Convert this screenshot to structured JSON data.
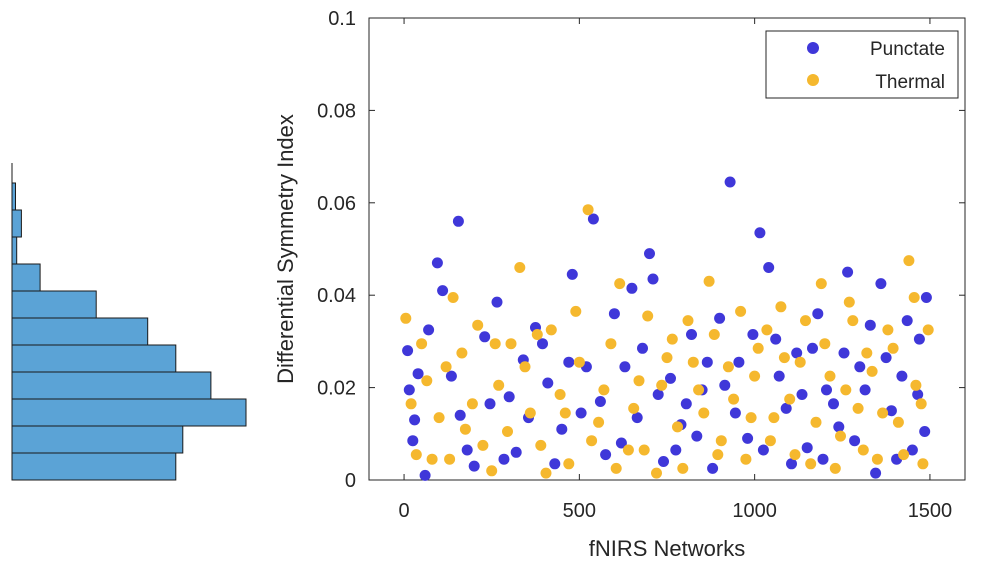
{
  "chart_data": [
    {
      "type": "scatter",
      "xlabel": "fNIRS Networks",
      "ylabel": "Differential Symmetry Index",
      "xlim": [
        -100,
        1600
      ],
      "ylim": [
        0,
        0.1
      ],
      "x_ticks": [
        0,
        500,
        1000,
        1500
      ],
      "x_tick_labels": [
        "0",
        "500",
        "1000",
        "1500"
      ],
      "y_ticks": [
        0,
        0.02,
        0.04,
        0.06,
        0.08,
        0.1
      ],
      "y_tick_labels": [
        "0",
        "0.02",
        "0.04",
        "0.06",
        "0.08",
        "0.1"
      ],
      "grid": false,
      "legend_position": "top-right",
      "series": [
        {
          "name": "Punctate",
          "color": "#3f37d9",
          "points": [
            [
              10,
              0.028
            ],
            [
              40,
              0.023
            ],
            [
              15,
              0.0195
            ],
            [
              30,
              0.013
            ],
            [
              60,
              0.001
            ],
            [
              95,
              0.047
            ],
            [
              110,
              0.041
            ],
            [
              155,
              0.056
            ],
            [
              160,
              0.014
            ],
            [
              200,
              0.003
            ],
            [
              230,
              0.031
            ],
            [
              265,
              0.0385
            ],
            [
              300,
              0.018
            ],
            [
              320,
              0.006
            ],
            [
              340,
              0.026
            ],
            [
              375,
              0.033
            ],
            [
              410,
              0.021
            ],
            [
              450,
              0.011
            ],
            [
              480,
              0.0445
            ],
            [
              520,
              0.0245
            ],
            [
              540,
              0.0565
            ],
            [
              560,
              0.017
            ],
            [
              600,
              0.036
            ],
            [
              620,
              0.008
            ],
            [
              650,
              0.0415
            ],
            [
              680,
              0.0285
            ],
            [
              700,
              0.049
            ],
            [
              710,
              0.0435
            ],
            [
              740,
              0.004
            ],
            [
              760,
              0.022
            ],
            [
              790,
              0.012
            ],
            [
              820,
              0.0315
            ],
            [
              850,
              0.0195
            ],
            [
              880,
              0.0025
            ],
            [
              900,
              0.035
            ],
            [
              930,
              0.0645
            ],
            [
              955,
              0.0255
            ],
            [
              980,
              0.009
            ],
            [
              1015,
              0.0535
            ],
            [
              1040,
              0.046
            ],
            [
              1060,
              0.0305
            ],
            [
              1090,
              0.0155
            ],
            [
              1120,
              0.0275
            ],
            [
              1150,
              0.007
            ],
            [
              1180,
              0.036
            ],
            [
              1205,
              0.0195
            ],
            [
              1240,
              0.0115
            ],
            [
              1265,
              0.045
            ],
            [
              1300,
              0.0245
            ],
            [
              1330,
              0.0335
            ],
            [
              1360,
              0.0425
            ],
            [
              1390,
              0.015
            ],
            [
              1420,
              0.0225
            ],
            [
              1450,
              0.0065
            ],
            [
              1470,
              0.0305
            ],
            [
              1490,
              0.0395
            ],
            [
              25,
              0.0085
            ],
            [
              70,
              0.0325
            ],
            [
              135,
              0.0225
            ],
            [
              180,
              0.0065
            ],
            [
              245,
              0.0165
            ],
            [
              285,
              0.0045
            ],
            [
              355,
              0.0135
            ],
            [
              395,
              0.0295
            ],
            [
              430,
              0.0035
            ],
            [
              470,
              0.0255
            ],
            [
              505,
              0.0145
            ],
            [
              575,
              0.0055
            ],
            [
              630,
              0.0245
            ],
            [
              665,
              0.0135
            ],
            [
              725,
              0.0185
            ],
            [
              775,
              0.0065
            ],
            [
              805,
              0.0165
            ],
            [
              835,
              0.0095
            ],
            [
              865,
              0.0255
            ],
            [
              915,
              0.0205
            ],
            [
              945,
              0.0145
            ],
            [
              995,
              0.0315
            ],
            [
              1025,
              0.0065
            ],
            [
              1070,
              0.0225
            ],
            [
              1105,
              0.0035
            ],
            [
              1135,
              0.0185
            ],
            [
              1165,
              0.0285
            ],
            [
              1195,
              0.0045
            ],
            [
              1225,
              0.0165
            ],
            [
              1255,
              0.0275
            ],
            [
              1285,
              0.0085
            ],
            [
              1315,
              0.0195
            ],
            [
              1345,
              0.0015
            ],
            [
              1375,
              0.0265
            ],
            [
              1405,
              0.0045
            ],
            [
              1435,
              0.0345
            ],
            [
              1465,
              0.0185
            ],
            [
              1485,
              0.0105
            ]
          ]
        },
        {
          "name": "Thermal",
          "color": "#f5b82e",
          "points": [
            [
              5,
              0.035
            ],
            [
              20,
              0.0165
            ],
            [
              50,
              0.0295
            ],
            [
              80,
              0.0045
            ],
            [
              120,
              0.0245
            ],
            [
              140,
              0.0395
            ],
            [
              175,
              0.011
            ],
            [
              210,
              0.0335
            ],
            [
              250,
              0.002
            ],
            [
              270,
              0.0205
            ],
            [
              305,
              0.0295
            ],
            [
              330,
              0.046
            ],
            [
              360,
              0.0145
            ],
            [
              390,
              0.0075
            ],
            [
              420,
              0.0325
            ],
            [
              445,
              0.0185
            ],
            [
              470,
              0.0035
            ],
            [
              500,
              0.0255
            ],
            [
              525,
              0.0585
            ],
            [
              555,
              0.0125
            ],
            [
              590,
              0.0295
            ],
            [
              615,
              0.0425
            ],
            [
              640,
              0.0065
            ],
            [
              670,
              0.0215
            ],
            [
              695,
              0.0355
            ],
            [
              720,
              0.0015
            ],
            [
              750,
              0.0265
            ],
            [
              780,
              0.0115
            ],
            [
              810,
              0.0345
            ],
            [
              840,
              0.0195
            ],
            [
              870,
              0.043
            ],
            [
              895,
              0.0055
            ],
            [
              925,
              0.0245
            ],
            [
              960,
              0.0365
            ],
            [
              990,
              0.0135
            ],
            [
              1010,
              0.0285
            ],
            [
              1045,
              0.0085
            ],
            [
              1075,
              0.0375
            ],
            [
              1100,
              0.0175
            ],
            [
              1130,
              0.0255
            ],
            [
              1160,
              0.0035
            ],
            [
              1190,
              0.0425
            ],
            [
              1215,
              0.0225
            ],
            [
              1245,
              0.0095
            ],
            [
              1270,
              0.0385
            ],
            [
              1295,
              0.0155
            ],
            [
              1320,
              0.0275
            ],
            [
              1350,
              0.0045
            ],
            [
              1380,
              0.0325
            ],
            [
              1410,
              0.0125
            ],
            [
              1440,
              0.0475
            ],
            [
              1460,
              0.0205
            ],
            [
              1480,
              0.0035
            ],
            [
              1495,
              0.0325
            ],
            [
              35,
              0.0055
            ],
            [
              65,
              0.0215
            ],
            [
              100,
              0.0135
            ],
            [
              130,
              0.0045
            ],
            [
              165,
              0.0275
            ],
            [
              195,
              0.0165
            ],
            [
              225,
              0.0075
            ],
            [
              260,
              0.0295
            ],
            [
              295,
              0.0105
            ],
            [
              345,
              0.0245
            ],
            [
              380,
              0.0315
            ],
            [
              405,
              0.0015
            ],
            [
              460,
              0.0145
            ],
            [
              490,
              0.0365
            ],
            [
              535,
              0.0085
            ],
            [
              570,
              0.0195
            ],
            [
              605,
              0.0025
            ],
            [
              655,
              0.0155
            ],
            [
              685,
              0.0065
            ],
            [
              735,
              0.0205
            ],
            [
              765,
              0.0305
            ],
            [
              795,
              0.0025
            ],
            [
              825,
              0.0255
            ],
            [
              855,
              0.0145
            ],
            [
              885,
              0.0315
            ],
            [
              905,
              0.0085
            ],
            [
              940,
              0.0175
            ],
            [
              975,
              0.0045
            ],
            [
              1000,
              0.0225
            ],
            [
              1035,
              0.0325
            ],
            [
              1055,
              0.0135
            ],
            [
              1085,
              0.0265
            ],
            [
              1115,
              0.0055
            ],
            [
              1145,
              0.0345
            ],
            [
              1175,
              0.0125
            ],
            [
              1200,
              0.0295
            ],
            [
              1230,
              0.0025
            ],
            [
              1260,
              0.0195
            ],
            [
              1280,
              0.0345
            ],
            [
              1310,
              0.0065
            ],
            [
              1335,
              0.0235
            ],
            [
              1365,
              0.0145
            ],
            [
              1395,
              0.0285
            ],
            [
              1425,
              0.0055
            ],
            [
              1455,
              0.0395
            ],
            [
              1475,
              0.0165
            ]
          ]
        }
      ]
    },
    {
      "type": "bar",
      "orientation": "horizontal",
      "color": "#5ba3d6",
      "edge_color": "#1a1a1a",
      "values": [
        0.7,
        0.73,
        1.0,
        0.85,
        0.7,
        0.58,
        0.36,
        0.12,
        0.02,
        0.04,
        0.015
      ]
    }
  ]
}
